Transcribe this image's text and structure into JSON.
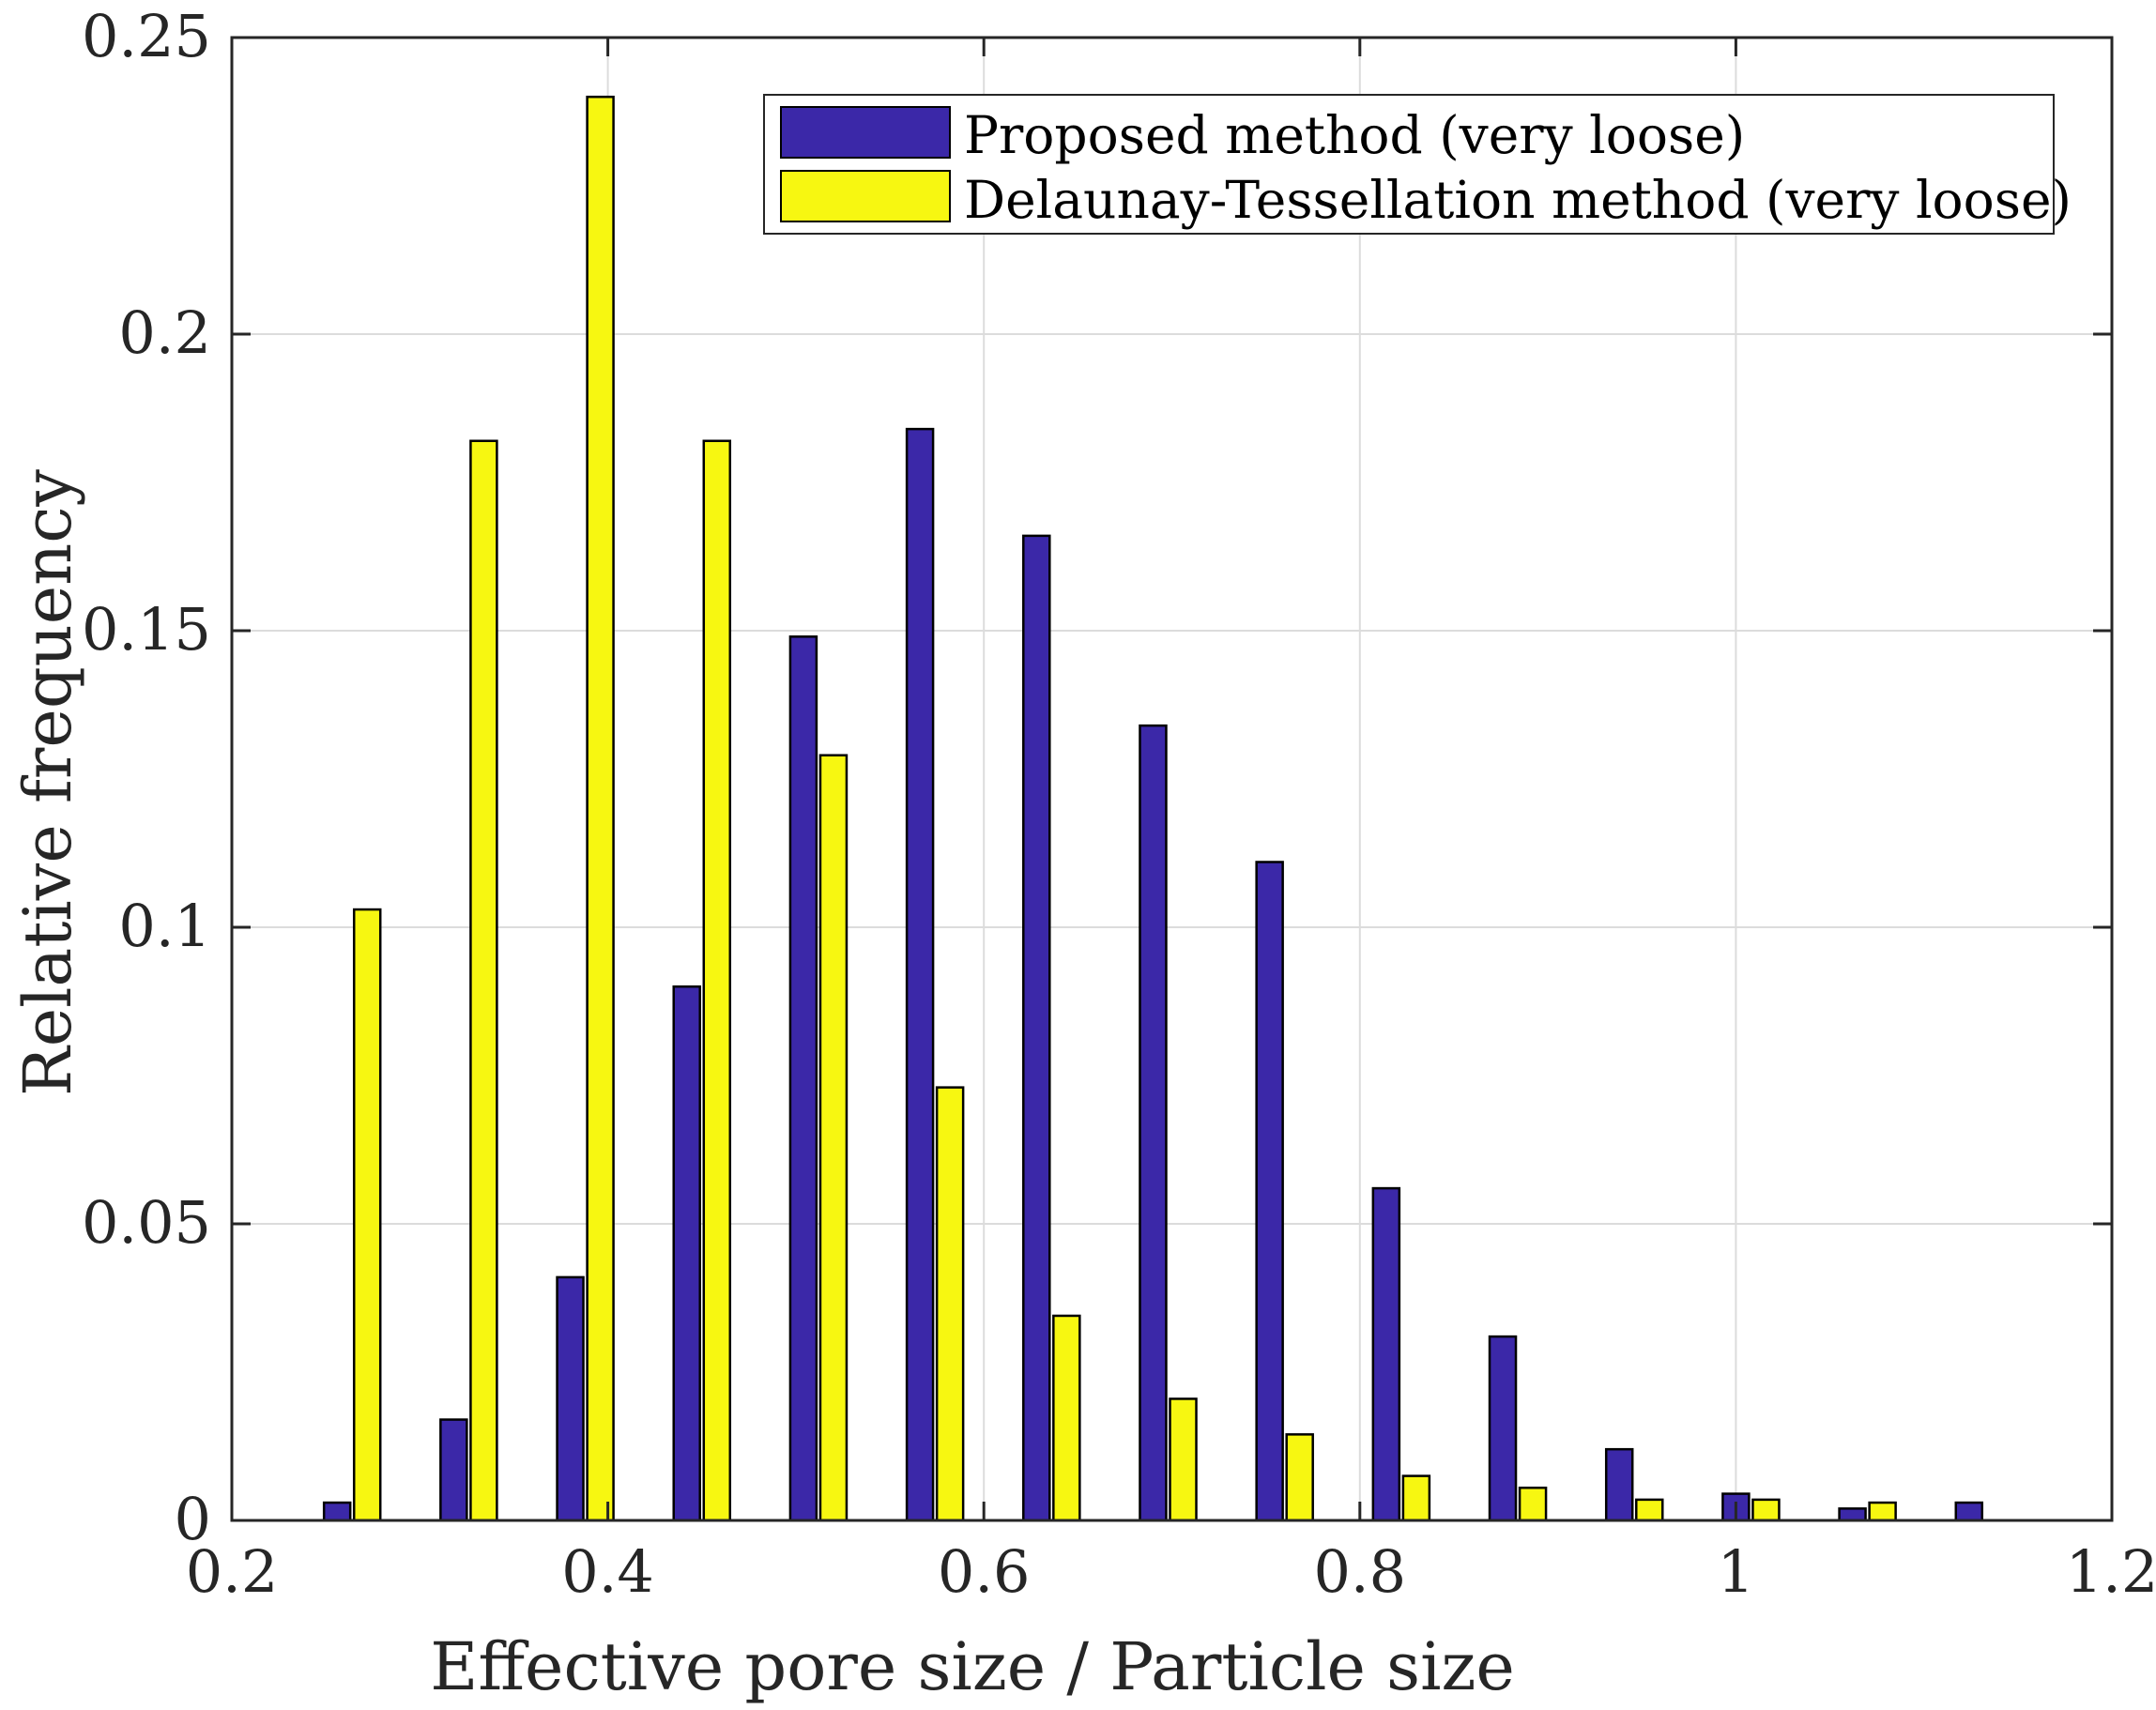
{
  "chart_data": {
    "type": "bar",
    "title": "",
    "xlabel": "Effective pore size / Particle size",
    "ylabel": "Relative frequency",
    "xlim": [
      0.2,
      1.2
    ],
    "ylim": [
      0,
      0.25
    ],
    "xticks": [
      0.2,
      0.4,
      0.6,
      0.8,
      1.0,
      1.2
    ],
    "xtick_labels": [
      "0.2",
      "0.4",
      "0.6",
      "0.8",
      "1",
      "1.2"
    ],
    "yticks": [
      0,
      0.05,
      0.1,
      0.15,
      0.2,
      0.25
    ],
    "ytick_labels": [
      "0",
      "0.05",
      "0.1",
      "0.15",
      "0.2",
      "0.25"
    ],
    "grid": true,
    "legend_position": "top-right",
    "series": [
      {
        "name": "Proposed method (very loose)",
        "color": "#3b28a8",
        "x": [
          0.256,
          0.318,
          0.38,
          0.442,
          0.504,
          0.566,
          0.628,
          0.69,
          0.752,
          0.814,
          0.876,
          0.938,
          1.0,
          1.062,
          1.124
        ],
        "values": [
          0.003,
          0.017,
          0.041,
          0.09,
          0.149,
          0.184,
          0.166,
          0.134,
          0.111,
          0.056,
          0.031,
          0.012,
          0.0045,
          0.002,
          0.003
        ]
      },
      {
        "name": "Delaunay-Tessellation method (very loose)",
        "color": "#f7f711",
        "x": [
          0.272,
          0.334,
          0.396,
          0.458,
          0.52,
          0.582,
          0.644,
          0.706,
          0.768,
          0.83,
          0.892,
          0.954,
          1.016,
          1.078
        ],
        "values": [
          0.103,
          0.182,
          0.24,
          0.182,
          0.129,
          0.073,
          0.0345,
          0.0205,
          0.0145,
          0.0075,
          0.0055,
          0.0035,
          0.0035,
          0.003
        ]
      }
    ]
  }
}
